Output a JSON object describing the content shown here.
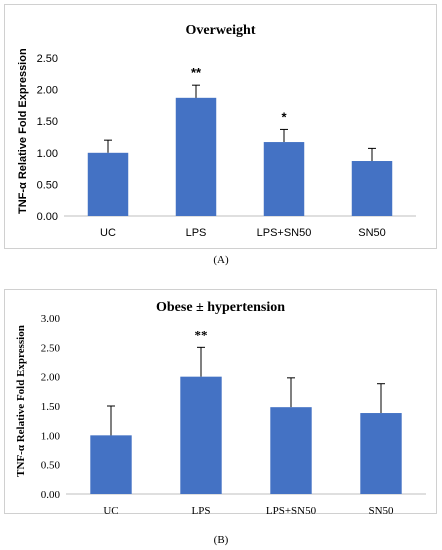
{
  "chart_data": [
    {
      "type": "bar",
      "title": "Overweight",
      "ylabel": "TNF-α Relative Fold Expression",
      "categories": [
        "UC",
        "LPS",
        "LPS+SN50",
        "SN50"
      ],
      "values": [
        1.0,
        1.87,
        1.17,
        0.87
      ],
      "errors": [
        0.2,
        0.2,
        0.2,
        0.2
      ],
      "significance": [
        "",
        "**",
        "*",
        ""
      ],
      "ylim": [
        0,
        2.5
      ],
      "yticks": [
        "0.00",
        "0.50",
        "1.00",
        "1.50",
        "2.00",
        "2.50"
      ],
      "grid": false,
      "color": "#4472c4",
      "caption": "(A)"
    },
    {
      "type": "bar",
      "title": "Obese ± hypertension",
      "ylabel": "TNF-α Relative Fold Expression",
      "categories": [
        "UC",
        "LPS",
        "LPS+SN50",
        "SN50"
      ],
      "values": [
        1.0,
        2.0,
        1.48,
        1.38
      ],
      "errors": [
        0.5,
        0.5,
        0.5,
        0.5
      ],
      "significance": [
        "",
        "**",
        "",
        ""
      ],
      "ylim": [
        0,
        3.0
      ],
      "yticks": [
        "0.00",
        "0.50",
        "1.00",
        "1.50",
        "2.00",
        "2.50",
        "3.00"
      ],
      "grid": false,
      "color": "#4472c4",
      "caption": "(B)"
    }
  ]
}
